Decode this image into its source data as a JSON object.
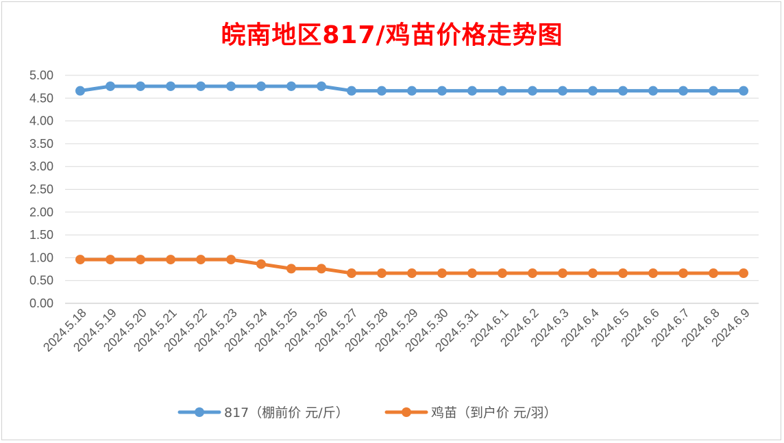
{
  "chart_data": {
    "type": "line",
    "title": "皖南地区817/鸡苗价格走势图",
    "categories": [
      "2024.5.18",
      "2024.5.19",
      "2024.5.20",
      "2024.5.21",
      "2024.5.22",
      "2024.5.23",
      "2024.5.24",
      "2024.5.25",
      "2024.5.26",
      "2024.5.27",
      "2024.5.28",
      "2024.5.29",
      "2024.5.30",
      "2024.5.31",
      "2024.6.1",
      "2024.6.2",
      "2024.6.3",
      "2024.6.4",
      "2024.6.5",
      "2024.6.6",
      "2024.6.7",
      "2024.6.8",
      "2024.6.9"
    ],
    "series": [
      {
        "name": "817（棚前价 元/斤）",
        "color": "#5b9bd5",
        "values": [
          4.66,
          4.76,
          4.76,
          4.76,
          4.76,
          4.76,
          4.76,
          4.76,
          4.76,
          4.66,
          4.66,
          4.66,
          4.66,
          4.66,
          4.66,
          4.66,
          4.66,
          4.66,
          4.66,
          4.66,
          4.66,
          4.66,
          4.66
        ]
      },
      {
        "name": "鸡苗（到户价 元/羽）",
        "color": "#ed7d31",
        "values": [
          0.96,
          0.96,
          0.96,
          0.96,
          0.96,
          0.96,
          0.86,
          0.76,
          0.76,
          0.66,
          0.66,
          0.66,
          0.66,
          0.66,
          0.66,
          0.66,
          0.66,
          0.66,
          0.66,
          0.66,
          0.66,
          0.66,
          0.66
        ]
      }
    ],
    "ylim": [
      0,
      5
    ],
    "yticks": [
      "0.00",
      "0.50",
      "1.00",
      "1.50",
      "2.00",
      "2.50",
      "3.00",
      "3.50",
      "4.00",
      "4.50",
      "5.00"
    ],
    "xlabel": "",
    "ylabel": "",
    "grid": true,
    "legend": "bottom",
    "title_color": "#ff0000"
  }
}
